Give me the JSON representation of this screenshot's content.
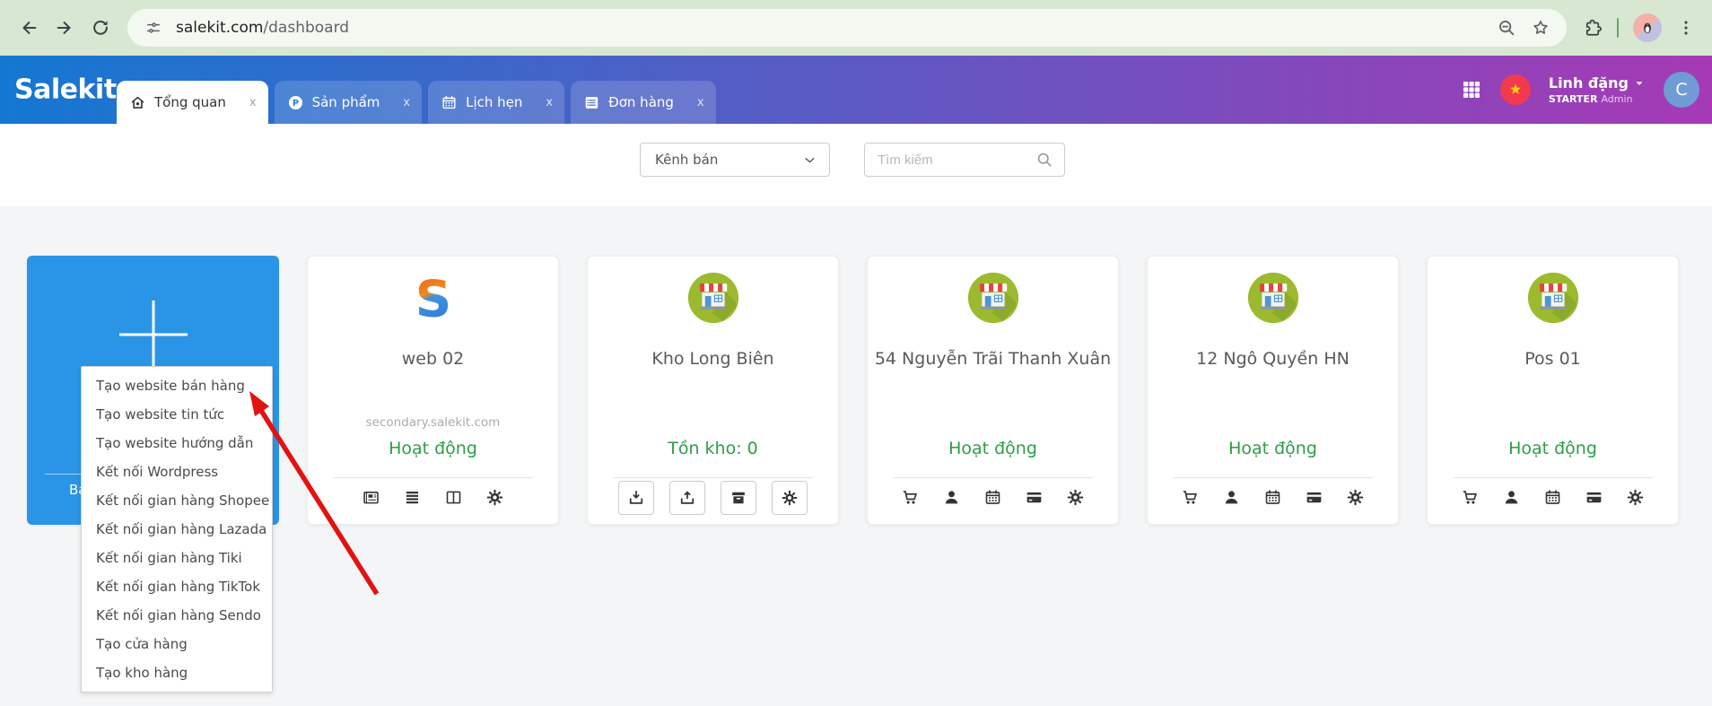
{
  "colors": {
    "header_gradient_start": "#1478d1",
    "header_gradient_end": "#a63ab5",
    "create_card_blue": "#2a95e6",
    "status_green": "#2d9e47",
    "arrow_red": "#e31212",
    "flag_red": "#f23a4e"
  },
  "browser": {
    "url": {
      "host": "salekit.com",
      "path": "/dashboard"
    }
  },
  "app_header": {
    "logo": "Salekit",
    "tab_close_glyph": "x",
    "tabs": [
      {
        "id": "tong-quan",
        "label": "Tổng quan",
        "icon": "home",
        "active": true
      },
      {
        "id": "san-pham",
        "label": "Sản phẩm",
        "icon": "product-p",
        "active": false
      },
      {
        "id": "lich-hen",
        "label": "Lịch hẹn",
        "icon": "calendar-grid",
        "active": false
      },
      {
        "id": "don-hang",
        "label": "Đơn hàng",
        "icon": "order-list",
        "active": false
      }
    ],
    "user": {
      "name": "Linh đặng",
      "plan": "STARTER",
      "role": "Admin",
      "avatar_letter": "C"
    }
  },
  "filter_bar": {
    "channel_select_label": "Kênh bán",
    "search_placeholder": "Tìm kiếm"
  },
  "create_menu": {
    "items": [
      "Tạo website bán hàng",
      "Tạo website tin tức",
      "Tạo website hướng dẫn",
      "Kết nối Wordpress",
      "Kết nối gian hàng Shopee",
      "Kết nối gian hàng Lazada",
      "Kết nối gian hàng Tiki",
      "Kết nối gian hàng TikTok",
      "Kết nối gian hàng Sendo",
      "Tạo cửa hàng",
      "Tạo kho hàng"
    ]
  },
  "annotation": {
    "type": "red-arrow",
    "points_to": "Tạo website bán hàng"
  },
  "cards": [
    {
      "type": "create",
      "icon": "plus",
      "text_fragment": "Bạ"
    },
    {
      "type": "website",
      "icon": "salekit-s",
      "name": "web 02",
      "domain": "secondary.salekit.com",
      "status": "Hoạt động",
      "actions": [
        "newspaper",
        "menu-lines",
        "columns",
        "gear"
      ],
      "bordered_actions": false
    },
    {
      "type": "warehouse",
      "icon": "storefront",
      "name": "Kho Long Biên",
      "status": "Tồn kho: 0",
      "actions": [
        "download",
        "upload",
        "archive",
        "gear"
      ],
      "bordered_actions": true
    },
    {
      "type": "store",
      "icon": "storefront",
      "name": "54 Nguyễn Trãi Thanh Xuân",
      "status": "Hoạt động",
      "actions": [
        "cart",
        "person",
        "calendar-grid",
        "credit-card",
        "gear"
      ],
      "bordered_actions": false
    },
    {
      "type": "store",
      "icon": "storefront",
      "name": "12 Ngô Quyền HN",
      "status": "Hoạt động",
      "actions": [
        "cart",
        "person",
        "calendar-grid",
        "credit-card",
        "gear"
      ],
      "bordered_actions": false
    },
    {
      "type": "store",
      "icon": "storefront",
      "name": "Pos 01",
      "status": "Hoạt động",
      "actions": [
        "cart",
        "person",
        "calendar-grid",
        "credit-card",
        "gear"
      ],
      "bordered_actions": false
    }
  ]
}
